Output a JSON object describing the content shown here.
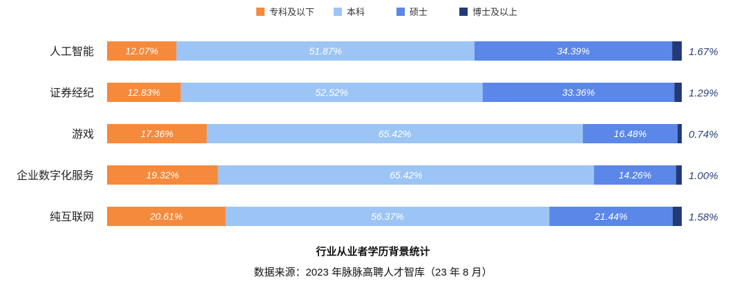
{
  "chart_data": {
    "type": "bar",
    "orientation": "horizontal",
    "stacked": true,
    "percent_stacked": true,
    "categories": [
      "人工智能",
      "证券经纪",
      "游戏",
      "企业数字化服务",
      "纯互联网"
    ],
    "series": [
      {
        "name": "专科及以下",
        "color": "#f58a3c",
        "values": [
          12.07,
          12.83,
          17.36,
          19.32,
          20.61
        ]
      },
      {
        "name": "本科",
        "color": "#9cc5f5",
        "values": [
          51.87,
          52.52,
          65.42,
          65.42,
          56.37
        ]
      },
      {
        "name": "硕士",
        "color": "#5a87e8",
        "values": [
          34.39,
          33.36,
          16.48,
          14.26,
          21.44
        ]
      },
      {
        "name": "博士及以上",
        "color": "#233a78",
        "values": [
          1.67,
          1.29,
          0.74,
          1.0,
          1.58
        ]
      }
    ],
    "value_labels": [
      [
        "12.07%",
        "51.87%",
        "34.39%",
        "1.67%"
      ],
      [
        "12.83%",
        "52.52%",
        "33.36%",
        "1.29%"
      ],
      [
        "17.36%",
        "65.42%",
        "16.48%",
        "0.74%"
      ],
      [
        "19.32%",
        "65.42%",
        "14.26%",
        "1.00%"
      ],
      [
        "20.61%",
        "56.37%",
        "21.44%",
        "1.58%"
      ]
    ],
    "legend_position": "top-center",
    "grid": false,
    "title": "行业从业者学历背景统计",
    "source": "数据来源：2023 年脉脉高聘人才智库（23 年 8 月）"
  }
}
